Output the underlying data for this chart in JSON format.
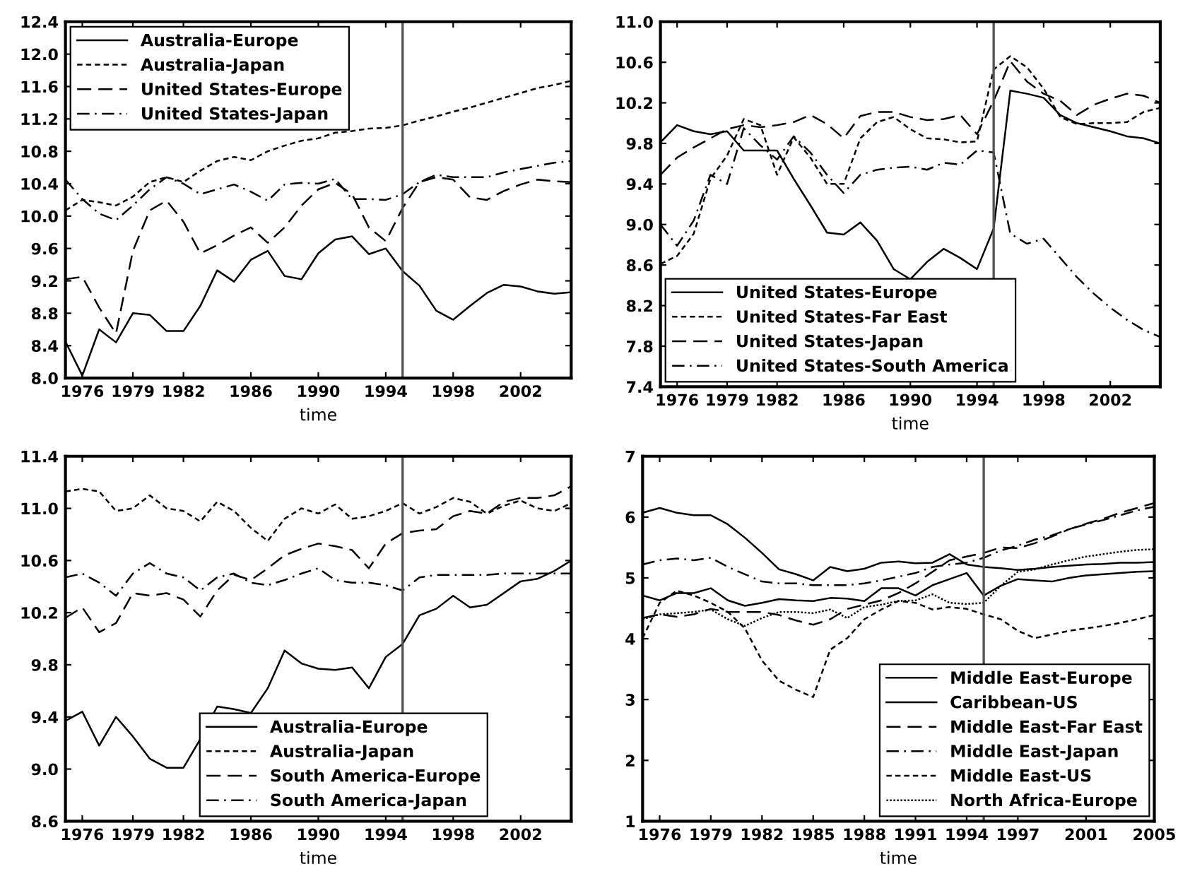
{
  "chart_data": [
    {
      "type": "line",
      "xlabel": "time",
      "legend": "top left",
      "grid": false,
      "x": [
        1975,
        1976,
        1977,
        1978,
        1979,
        1980,
        1981,
        1982,
        1983,
        1984,
        1985,
        1986,
        1987,
        1988,
        1989,
        1990,
        1991,
        1992,
        1993,
        1994,
        1995,
        1996,
        1997,
        1998,
        1999,
        2000,
        2001,
        2002,
        2003,
        2004,
        2005
      ],
      "xlim": [
        1975,
        2005
      ],
      "xticks": [
        1976,
        1979,
        1982,
        1986,
        1990,
        1994,
        1998,
        2002
      ],
      "ylim": [
        8.0,
        12.4
      ],
      "yticks": [
        {
          "value": 8.0,
          "label": "8.0"
        },
        8.4,
        8.8,
        9.2,
        9.6,
        {
          "value": 10.0,
          "label": "10.0"
        },
        10.4,
        10.8,
        11.2,
        11.6,
        {
          "value": 12.0,
          "label": "12.0"
        },
        12.4
      ],
      "ref_lines": [
        {
          "axis": "x",
          "value": 1995,
          "color": "#555555"
        }
      ],
      "series": [
        {
          "name": "Australia-Europe",
          "color": "#000000",
          "line_style": "solid",
          "values": [
            8.45,
            8.03,
            8.6,
            8.44,
            8.8,
            8.78,
            8.58,
            8.58,
            8.89,
            9.33,
            9.19,
            9.46,
            9.57,
            9.26,
            9.22,
            9.54,
            9.71,
            9.75,
            9.53,
            9.6,
            9.32,
            9.14,
            8.83,
            8.72,
            8.89,
            9.05,
            9.15,
            9.13,
            9.07,
            9.04,
            9.06
          ]
        },
        {
          "name": "Australia-Japan",
          "color": "#000000",
          "line_style": "dashed",
          "values": [
            10.07,
            10.2,
            10.17,
            10.13,
            10.24,
            10.42,
            10.48,
            10.42,
            10.56,
            10.68,
            10.73,
            10.69,
            10.8,
            10.87,
            10.93,
            10.96,
            11.03,
            11.05,
            11.08,
            11.09,
            11.12,
            11.18,
            11.23,
            11.29,
            11.34,
            11.4,
            11.46,
            11.52,
            11.58,
            11.62,
            11.67
          ]
        },
        {
          "name": "United States-Europe",
          "color": "#000000",
          "line_style": "longdashed",
          "values": [
            9.22,
            9.25,
            8.87,
            8.55,
            9.57,
            10.07,
            10.19,
            9.93,
            9.54,
            9.64,
            9.76,
            9.86,
            9.67,
            9.86,
            10.13,
            10.33,
            10.41,
            10.27,
            9.86,
            9.69,
            10.1,
            10.42,
            10.48,
            10.45,
            10.23,
            10.2,
            10.31,
            10.39,
            10.45,
            10.43,
            10.42
          ]
        },
        {
          "name": "United States-Japan",
          "color": "#000000",
          "line_style": "dashdot",
          "values": [
            10.45,
            10.21,
            10.03,
            9.95,
            10.13,
            10.33,
            10.48,
            10.4,
            10.27,
            10.33,
            10.39,
            10.3,
            10.19,
            10.39,
            10.41,
            10.4,
            10.46,
            10.21,
            10.21,
            10.2,
            10.27,
            10.42,
            10.51,
            10.48,
            10.48,
            10.48,
            10.54,
            10.58,
            10.62,
            10.66,
            10.68
          ]
        }
      ]
    },
    {
      "type": "line",
      "xlabel": "time",
      "legend": "bottom left",
      "grid": false,
      "x": [
        1975,
        1976,
        1977,
        1978,
        1979,
        1980,
        1981,
        1982,
        1983,
        1984,
        1985,
        1986,
        1987,
        1988,
        1989,
        1990,
        1991,
        1992,
        1993,
        1994,
        1995,
        1996,
        1997,
        1998,
        1999,
        2000,
        2001,
        2002,
        2003,
        2004,
        2005
      ],
      "xlim": [
        1975,
        2005
      ],
      "xticks": [
        1976,
        1979,
        1982,
        1986,
        1990,
        1994,
        1998,
        2002
      ],
      "ylim": [
        7.4,
        11.0
      ],
      "yticks": [
        7.4,
        7.8,
        8.2,
        8.6,
        {
          "value": 9.0,
          "label": "9.0"
        },
        9.4,
        9.8,
        10.2,
        10.6,
        {
          "value": 11.0,
          "label": "11.0"
        }
      ],
      "ref_lines": [
        {
          "axis": "x",
          "value": 1995,
          "color": "#555555"
        }
      ],
      "series": [
        {
          "name": "United States-Europe",
          "color": "#000000",
          "line_style": "solid",
          "values": [
            9.81,
            9.98,
            9.92,
            9.89,
            9.92,
            9.73,
            9.73,
            9.73,
            9.45,
            9.19,
            8.92,
            8.9,
            9.02,
            8.84,
            8.56,
            8.46,
            8.63,
            8.76,
            8.67,
            8.56,
            8.96,
            10.32,
            10.29,
            10.25,
            10.08,
            10.0,
            9.96,
            9.92,
            9.87,
            9.85,
            9.8
          ]
        },
        {
          "name": "United States-Far East",
          "color": "#000000",
          "line_style": "dashed",
          "values": [
            8.61,
            8.69,
            8.91,
            9.45,
            9.68,
            10.04,
            9.98,
            9.49,
            9.86,
            9.66,
            9.4,
            9.4,
            9.85,
            10.01,
            10.06,
            9.94,
            9.85,
            9.84,
            9.81,
            9.82,
            10.53,
            10.66,
            10.55,
            10.34,
            10.06,
            9.99,
            10.0,
            10.0,
            10.01,
            10.11,
            10.15
          ]
        },
        {
          "name": "United States-Japan",
          "color": "#000000",
          "line_style": "longdashed",
          "values": [
            9.49,
            9.66,
            9.76,
            9.85,
            9.94,
            9.98,
            9.96,
            9.98,
            10.01,
            10.08,
            9.99,
            9.85,
            10.07,
            10.11,
            10.11,
            10.06,
            10.03,
            10.04,
            10.08,
            9.89,
            10.22,
            10.61,
            10.41,
            10.29,
            10.22,
            10.08,
            10.18,
            10.24,
            10.29,
            10.27,
            10.2
          ]
        },
        {
          "name": "United States-South America",
          "color": "#000000",
          "line_style": "dashdot",
          "values": [
            9.0,
            8.79,
            9.04,
            9.49,
            9.4,
            9.95,
            9.78,
            9.64,
            9.87,
            9.71,
            9.49,
            9.31,
            9.49,
            9.54,
            9.56,
            9.57,
            9.54,
            9.61,
            9.59,
            9.73,
            9.71,
            8.91,
            8.81,
            8.86,
            8.67,
            8.48,
            8.32,
            8.18,
            8.06,
            7.96,
            7.89
          ]
        }
      ]
    },
    {
      "type": "line",
      "xlabel": "time",
      "legend": "bottom",
      "grid": false,
      "x": [
        1975,
        1976,
        1977,
        1978,
        1979,
        1980,
        1981,
        1982,
        1983,
        1984,
        1985,
        1986,
        1987,
        1988,
        1989,
        1990,
        1991,
        1992,
        1993,
        1994,
        1995,
        1996,
        1997,
        1998,
        1999,
        2000,
        2001,
        2002,
        2003,
        2004,
        2005
      ],
      "xlim": [
        1975,
        2005
      ],
      "xticks": [
        1976,
        1979,
        1982,
        1986,
        1990,
        1994,
        1998,
        2002
      ],
      "ylim": [
        8.6,
        11.4
      ],
      "yticks": [
        8.6,
        {
          "value": 9.0,
          "label": "9.0"
        },
        9.4,
        9.8,
        10.2,
        10.6,
        {
          "value": 11.0,
          "label": "11.0"
        },
        11.4
      ],
      "ref_lines": [
        {
          "axis": "x",
          "value": 1995,
          "color": "#555555"
        }
      ],
      "series": [
        {
          "name": "Australia-Europe",
          "color": "#000000",
          "line_style": "solid",
          "values": [
            9.37,
            9.44,
            9.18,
            9.4,
            9.25,
            9.08,
            9.01,
            9.01,
            9.23,
            9.48,
            9.46,
            9.43,
            9.62,
            9.91,
            9.81,
            9.77,
            9.76,
            9.78,
            9.62,
            9.86,
            9.96,
            10.18,
            10.23,
            10.33,
            10.24,
            10.26,
            10.35,
            10.44,
            10.46,
            10.52,
            10.6
          ]
        },
        {
          "name": "Australia-Japan",
          "color": "#000000",
          "line_style": "dashed",
          "values": [
            11.13,
            11.15,
            11.13,
            10.98,
            11.0,
            11.1,
            11.0,
            10.98,
            10.9,
            11.05,
            10.98,
            10.85,
            10.75,
            10.92,
            11.0,
            10.96,
            11.03,
            10.92,
            10.94,
            10.98,
            11.04,
            10.96,
            11.01,
            11.08,
            11.05,
            10.96,
            11.02,
            11.06,
            11.0,
            10.98,
            11.04
          ]
        },
        {
          "name": "South America-Europe",
          "color": "#000000",
          "line_style": "longdashed",
          "values": [
            10.16,
            10.24,
            10.05,
            10.12,
            10.35,
            10.33,
            10.35,
            10.3,
            10.17,
            10.37,
            10.49,
            10.45,
            10.54,
            10.64,
            10.69,
            10.73,
            10.71,
            10.68,
            10.54,
            10.73,
            10.81,
            10.83,
            10.84,
            10.94,
            10.98,
            10.96,
            11.05,
            11.08,
            11.08,
            11.1,
            11.17
          ]
        },
        {
          "name": "South America-Japan",
          "color": "#000000",
          "line_style": "dashdot",
          "values": [
            10.47,
            10.5,
            10.43,
            10.33,
            10.5,
            10.58,
            10.5,
            10.47,
            10.37,
            10.47,
            10.5,
            10.43,
            10.41,
            10.45,
            10.5,
            10.54,
            10.45,
            10.43,
            10.43,
            10.41,
            10.37,
            10.47,
            10.49,
            10.49,
            10.49,
            10.49,
            10.5,
            10.5,
            10.5,
            10.5,
            10.5
          ]
        }
      ]
    },
    {
      "type": "line",
      "xlabel": "time",
      "legend": "bottom right",
      "grid": false,
      "x": [
        1975,
        1976,
        1977,
        1978,
        1979,
        1980,
        1981,
        1982,
        1983,
        1984,
        1985,
        1986,
        1987,
        1988,
        1989,
        1990,
        1991,
        1992,
        1993,
        1994,
        1995,
        1996,
        1997,
        1998,
        1999,
        2000,
        2001,
        2002,
        2003,
        2004,
        2005
      ],
      "xlim": [
        1975,
        2005
      ],
      "xticks": [
        1976,
        1979,
        1982,
        1985,
        1988,
        1991,
        1994,
        1997,
        2001,
        2005
      ],
      "ylim": [
        1,
        7
      ],
      "yticks": [
        1,
        2,
        3,
        4,
        5,
        6,
        7
      ],
      "ref_lines": [
        {
          "axis": "x",
          "value": 1995,
          "color": "#555555"
        }
      ],
      "series": [
        {
          "name": "Middle East-Europe",
          "color": "#000000",
          "line_style": "solid",
          "values": [
            6.07,
            6.15,
            6.07,
            6.03,
            6.03,
            5.88,
            5.66,
            5.41,
            5.14,
            5.06,
            4.96,
            5.18,
            5.11,
            5.15,
            5.25,
            5.27,
            5.24,
            5.25,
            5.39,
            5.22,
            5.18,
            5.16,
            5.13,
            5.15,
            5.18,
            5.2,
            5.22,
            5.23,
            5.25,
            5.25,
            5.26
          ]
        },
        {
          "name": "Caribbean-US",
          "color": "#000000",
          "line_style": "solid",
          "values": [
            4.71,
            4.63,
            4.75,
            4.75,
            4.83,
            4.63,
            4.54,
            4.59,
            4.65,
            4.63,
            4.62,
            4.67,
            4.66,
            4.62,
            4.83,
            4.83,
            4.71,
            4.88,
            4.98,
            5.08,
            4.71,
            4.87,
            4.98,
            4.96,
            4.94,
            5.0,
            5.04,
            5.06,
            5.08,
            5.1,
            5.11
          ]
        },
        {
          "name": "Middle East-Far East",
          "color": "#000000",
          "line_style": "longdashed",
          "values": [
            4.34,
            4.4,
            4.36,
            4.4,
            4.49,
            4.44,
            4.44,
            4.44,
            4.39,
            4.3,
            4.23,
            4.32,
            4.49,
            4.56,
            4.63,
            4.75,
            4.91,
            5.1,
            5.29,
            5.35,
            5.41,
            5.5,
            5.49,
            5.57,
            5.68,
            5.8,
            5.89,
            5.97,
            6.07,
            6.15,
            6.23
          ]
        },
        {
          "name": "Middle East-Japan",
          "color": "#000000",
          "line_style": "dashdot",
          "values": [
            5.22,
            5.29,
            5.32,
            5.29,
            5.33,
            5.18,
            5.06,
            4.94,
            4.91,
            4.91,
            4.88,
            4.88,
            4.88,
            4.91,
            4.96,
            5.02,
            5.08,
            5.18,
            5.22,
            5.25,
            5.33,
            5.45,
            5.53,
            5.63,
            5.7,
            5.8,
            5.88,
            5.95,
            6.03,
            6.11,
            6.17
          ]
        },
        {
          "name": "Middle East-US",
          "color": "#000000",
          "line_style": "dashed",
          "values": [
            4.01,
            4.59,
            4.79,
            4.71,
            4.59,
            4.44,
            4.17,
            3.64,
            3.31,
            3.16,
            3.04,
            3.82,
            4.01,
            4.32,
            4.48,
            4.62,
            4.59,
            4.48,
            4.52,
            4.49,
            4.4,
            4.32,
            4.13,
            4.01,
            4.07,
            4.13,
            4.17,
            4.21,
            4.26,
            4.32,
            4.39
          ]
        },
        {
          "name": "North Africa-Europe",
          "color": "#000000",
          "line_style": "dotted",
          "values": [
            4.32,
            4.4,
            4.42,
            4.44,
            4.48,
            4.32,
            4.21,
            4.34,
            4.44,
            4.44,
            4.42,
            4.48,
            4.34,
            4.52,
            4.56,
            4.62,
            4.63,
            4.73,
            4.59,
            4.57,
            4.59,
            4.87,
            5.1,
            5.14,
            5.22,
            5.29,
            5.35,
            5.39,
            5.43,
            5.46,
            5.47
          ]
        }
      ]
    }
  ]
}
